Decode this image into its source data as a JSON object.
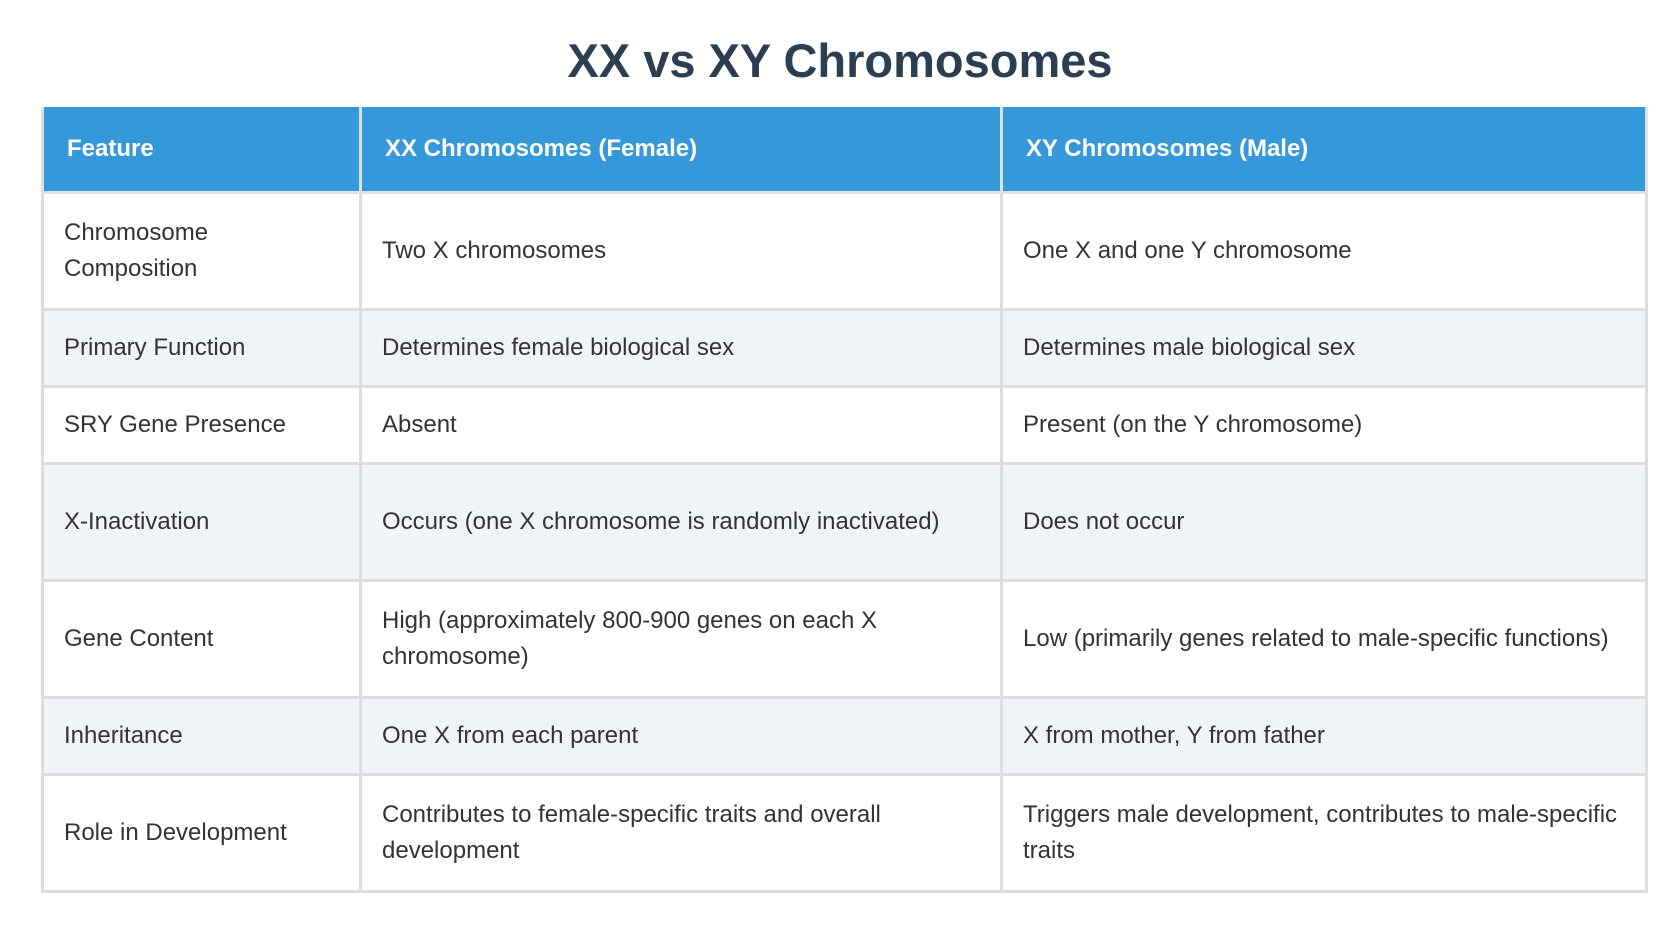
{
  "title": "XX vs XY Chromosomes",
  "table": {
    "headers": [
      "Feature",
      "XX Chromosomes (Female)",
      "XY Chromosomes (Male)"
    ],
    "rows": [
      [
        "Chromosome Composition",
        "Two X chromosomes",
        "One X and one Y chromosome"
      ],
      [
        "Primary Function",
        "Determines female biological sex",
        "Determines male biological sex"
      ],
      [
        "SRY Gene Presence",
        "Absent",
        "Present (on the Y chromosome)"
      ],
      [
        "X-Inactivation",
        "Occurs (one X chromosome is randomly inactivated)",
        "Does not occur"
      ],
      [
        "Gene Content",
        "High (approximately 800-900 genes on each X chromosome)",
        "Low (primarily genes related to male-specific functions)"
      ],
      [
        "Inheritance",
        "One X from each parent",
        "X from mother, Y from father"
      ],
      [
        "Role in Development",
        "Contributes to female-specific traits and overall development",
        "Triggers male development, contributes to male-specific traits"
      ]
    ]
  },
  "colors": {
    "title": "#2c3e50",
    "header_bg": "#3498db",
    "header_text": "#ffffff",
    "alt_row_bg": "#f0f4f8",
    "border": "#dcdcdc"
  }
}
